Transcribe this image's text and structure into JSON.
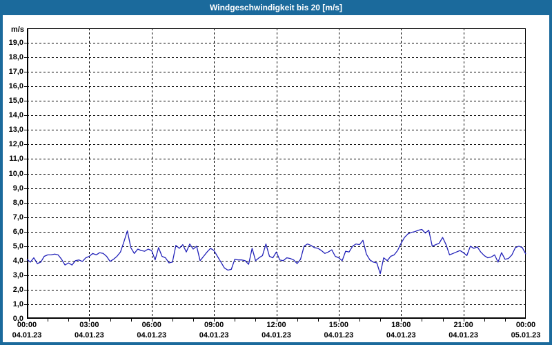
{
  "window": {
    "title": "Windgeschwindigkeit bis 20 [m/s]"
  },
  "colors": {
    "frame": "#1b6a9c",
    "titlebar": "#1b6a9c",
    "title_text": "#ffffff",
    "plot_bg": "#ffffff",
    "grid": "#000000",
    "axis": "#000000",
    "label_text": "#000000",
    "line": "#2020b8"
  },
  "chart_data": {
    "type": "line",
    "title": "Windgeschwindigkeit bis 20 [m/s]",
    "ylabel": "m/s",
    "xlabel": "",
    "ylim": [
      0,
      20
    ],
    "ytick_step": 1,
    "y_tick_labels": [
      "0,0",
      "1,0",
      "2,0",
      "3,0",
      "4,0",
      "5,0",
      "6,0",
      "7,0",
      "8,0",
      "9,0",
      "10,0",
      "11,0",
      "12,0",
      "13,0",
      "14,0",
      "15,0",
      "16,0",
      "17,0",
      "18,0",
      "19,0"
    ],
    "xlim_minutes": [
      0,
      1440
    ],
    "xtick_step_minutes": 180,
    "minor_xtick_step_minutes": 60,
    "grid": "dashed",
    "legend": "none",
    "x_ticks": [
      {
        "time": "00:00",
        "date": "04.01.23"
      },
      {
        "time": "03:00",
        "date": "04.01.23"
      },
      {
        "time": "06:00",
        "date": "04.01.23"
      },
      {
        "time": "09:00",
        "date": "04.01.23"
      },
      {
        "time": "12:00",
        "date": "04.01.23"
      },
      {
        "time": "15:00",
        "date": "04.01.23"
      },
      {
        "time": "18:00",
        "date": "04.01.23"
      },
      {
        "time": "21:00",
        "date": "04.01.23"
      },
      {
        "time": "00:00",
        "date": "05.01.23"
      }
    ],
    "series": [
      {
        "name": "Windgeschwindigkeit",
        "unit": "m/s",
        "start": "04.01.23 00:00",
        "interval_minutes": 10,
        "values": [
          4.1,
          3.9,
          4.2,
          3.8,
          3.9,
          4.3,
          4.4,
          4.4,
          4.45,
          4.4,
          4.1,
          3.7,
          3.85,
          3.7,
          4.0,
          4.05,
          3.95,
          4.2,
          4.3,
          4.5,
          4.4,
          4.55,
          4.5,
          4.3,
          3.95,
          4.1,
          4.3,
          4.6,
          5.3,
          6.05,
          4.9,
          4.5,
          4.8,
          4.7,
          4.65,
          4.8,
          4.7,
          4.05,
          4.9,
          4.3,
          4.2,
          3.85,
          3.9,
          5.05,
          4.85,
          5.1,
          4.6,
          5.15,
          4.8,
          5.0,
          4.0,
          4.3,
          4.6,
          4.85,
          4.7,
          4.3,
          3.9,
          3.5,
          3.35,
          3.4,
          4.1,
          4.05,
          4.05,
          4.0,
          3.75,
          4.85,
          4.0,
          4.2,
          4.35,
          5.15,
          4.3,
          4.2,
          4.6,
          4.05,
          4.0,
          4.2,
          4.15,
          4.05,
          3.8,
          4.1,
          5.0,
          5.15,
          5.05,
          4.9,
          4.85,
          4.7,
          4.5,
          4.6,
          4.75,
          4.3,
          4.2,
          4.0,
          4.65,
          4.6,
          5.0,
          5.15,
          5.1,
          5.4,
          4.45,
          4.05,
          3.9,
          3.85,
          3.1,
          4.2,
          4.0,
          4.3,
          4.4,
          4.7,
          5.2,
          5.6,
          5.85,
          5.95,
          6.0,
          6.1,
          6.15,
          5.9,
          6.1,
          5.0,
          5.1,
          5.2,
          5.6,
          5.1,
          4.4,
          4.5,
          4.6,
          4.7,
          4.55,
          4.35,
          5.0,
          4.85,
          4.95,
          4.6,
          4.35,
          4.2,
          4.25,
          4.4,
          3.9,
          4.55,
          4.1,
          4.15,
          4.4,
          4.9,
          5.0,
          4.9,
          4.45
        ]
      }
    ]
  }
}
